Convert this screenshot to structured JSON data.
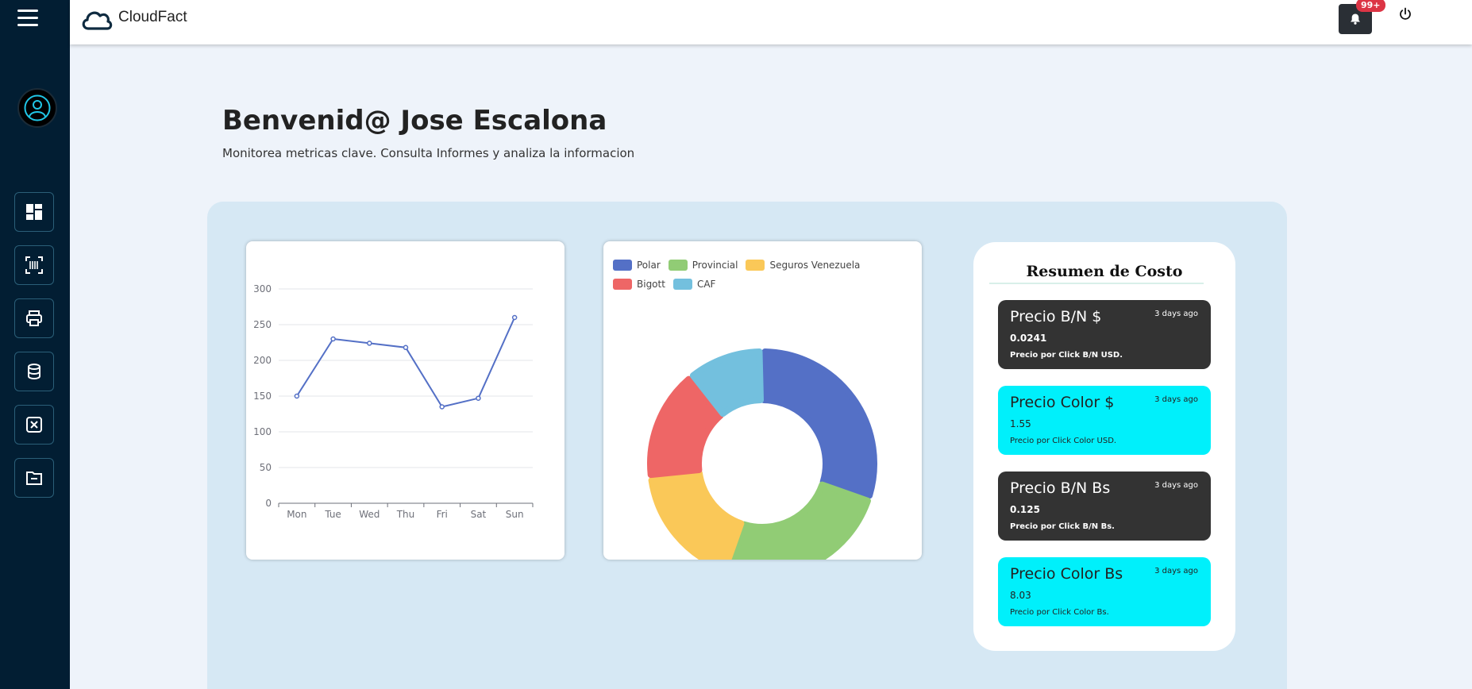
{
  "app": {
    "brand": "CloudFact"
  },
  "notifications": {
    "badge": "99+"
  },
  "header": {
    "title": "Benvenid@ Jose Escalona",
    "subtitle": "Monitorea metricas clave. Consulta Informes y analiza la informacion"
  },
  "sidebar": {
    "items": [
      {
        "icon": "dashboard-icon"
      },
      {
        "icon": "barcode-scan-icon"
      },
      {
        "icon": "printer-icon"
      },
      {
        "icon": "database-icon"
      },
      {
        "icon": "close-box-icon"
      },
      {
        "icon": "folder-icon"
      }
    ]
  },
  "chart_data": [
    {
      "type": "line",
      "categories": [
        "Mon",
        "Tue",
        "Wed",
        "Thu",
        "Fri",
        "Sat",
        "Sun"
      ],
      "series": [
        {
          "values": [
            150,
            230,
            224,
            218,
            135,
            147,
            260
          ],
          "color": "#5470c6"
        }
      ],
      "yticks": [
        "0",
        "50",
        "100",
        "150",
        "200",
        "250",
        "300"
      ],
      "ylim": [
        0,
        300
      ],
      "grid": true
    },
    {
      "type": "pie",
      "variant": "donut",
      "legend": "top",
      "slices": [
        {
          "label": "Polar",
          "value": 30,
          "color": "#5470c6"
        },
        {
          "label": "Provincial",
          "value": 25,
          "color": "#91cc75"
        },
        {
          "label": "Seguros Venezuela",
          "value": 18,
          "color": "#fac858"
        },
        {
          "label": "Bigott",
          "value": 16,
          "color": "#ee6666"
        },
        {
          "label": "CAF",
          "value": 11,
          "color": "#73c0de"
        }
      ]
    }
  ],
  "summary": {
    "title": "Resumen de Costo",
    "items": [
      {
        "title": "Precio B/N $",
        "time": "3 days ago",
        "value": "0.0241",
        "desc": "Precio por Click B/N USD."
      },
      {
        "title": "Precio Color $",
        "time": "3 days ago",
        "value": "1.55",
        "desc": "Precio por Click Color USD."
      },
      {
        "title": "Precio B/N Bs",
        "time": "3 days ago",
        "value": "0.125",
        "desc": "Precio por Click B/N Bs."
      },
      {
        "title": "Precio Color Bs",
        "time": "3 days ago",
        "value": "8.03",
        "desc": "Precio por Click Color Bs."
      }
    ]
  }
}
